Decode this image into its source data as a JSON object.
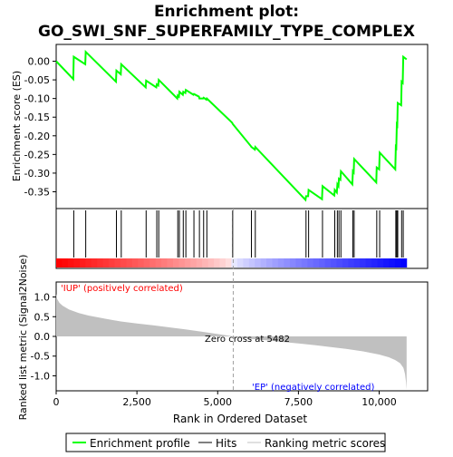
{
  "title_line1": "Enrichment plot:",
  "title_line2": "GO_SWI_SNF_SUPERFAMILY_TYPE_COMPLEX",
  "colors": {
    "es_line": "#00ff00",
    "hits": "#000000",
    "metric_fill": "#c0c0c0",
    "pos_label": "#ff0000",
    "neg_label": "#0000ff",
    "zero_line": "#a0a0a0"
  },
  "legend": {
    "es": "Enrichment profile",
    "hits": "Hits",
    "metric": "Ranking metric scores"
  },
  "chart_data": [
    {
      "type": "line",
      "name": "enrichment-profile",
      "ylabel": "Enrichment score (ES)",
      "xlim": [
        0,
        11500
      ],
      "ylim": [
        -0.395,
        0.045
      ],
      "yticks": [
        0.0,
        -0.05,
        -0.1,
        -0.15,
        -0.2,
        -0.25,
        -0.3,
        -0.35
      ],
      "ytick_labels": [
        "0.00",
        "-0.05",
        "-0.10",
        "-0.15",
        "-0.20",
        "-0.25",
        "-0.30",
        "-0.35"
      ],
      "grid": false,
      "points": [
        [
          0,
          0.0
        ],
        [
          530,
          -0.048
        ],
        [
          545,
          0.012
        ],
        [
          900,
          -0.008
        ],
        [
          915,
          0.025
        ],
        [
          1850,
          -0.055
        ],
        [
          1865,
          -0.025
        ],
        [
          2000,
          -0.035
        ],
        [
          2015,
          -0.008
        ],
        [
          2770,
          -0.07
        ],
        [
          2785,
          -0.052
        ],
        [
          3100,
          -0.07
        ],
        [
          3115,
          -0.062
        ],
        [
          3160,
          -0.065
        ],
        [
          3175,
          -0.05
        ],
        [
          3750,
          -0.1
        ],
        [
          3765,
          -0.092
        ],
        [
          3800,
          -0.095
        ],
        [
          3815,
          -0.082
        ],
        [
          3920,
          -0.09
        ],
        [
          3935,
          -0.082
        ],
        [
          4000,
          -0.085
        ],
        [
          4015,
          -0.077
        ],
        [
          4250,
          -0.09
        ],
        [
          4265,
          -0.088
        ],
        [
          4420,
          -0.095
        ],
        [
          4435,
          -0.1
        ],
        [
          4550,
          -0.1
        ],
        [
          4565,
          -0.098
        ],
        [
          4650,
          -0.103
        ],
        [
          4665,
          -0.1
        ],
        [
          5450,
          -0.165
        ],
        [
          5465,
          -0.168
        ],
        [
          6030,
          -0.228
        ],
        [
          6045,
          -0.23
        ],
        [
          6150,
          -0.237
        ],
        [
          6165,
          -0.23
        ],
        [
          7720,
          -0.372
        ],
        [
          7735,
          -0.362
        ],
        [
          7800,
          -0.362
        ],
        [
          7815,
          -0.345
        ],
        [
          8230,
          -0.37
        ],
        [
          8245,
          -0.335
        ],
        [
          8610,
          -0.36
        ],
        [
          8625,
          -0.345
        ],
        [
          8690,
          -0.352
        ],
        [
          8705,
          -0.33
        ],
        [
          8740,
          -0.335
        ],
        [
          8755,
          -0.315
        ],
        [
          8800,
          -0.318
        ],
        [
          8815,
          -0.295
        ],
        [
          9170,
          -0.33
        ],
        [
          9185,
          -0.295
        ],
        [
          9210,
          -0.298
        ],
        [
          9225,
          -0.262
        ],
        [
          9910,
          -0.325
        ],
        [
          9925,
          -0.285
        ],
        [
          10000,
          -0.29
        ],
        [
          10015,
          -0.245
        ],
        [
          10500,
          -0.29
        ],
        [
          10515,
          -0.23
        ],
        [
          10530,
          -0.232
        ],
        [
          10545,
          -0.17
        ],
        [
          10560,
          -0.172
        ],
        [
          10575,
          -0.112
        ],
        [
          10680,
          -0.118
        ],
        [
          10695,
          -0.055
        ],
        [
          10730,
          -0.058
        ],
        [
          10745,
          0.012
        ],
        [
          10850,
          0.005
        ]
      ]
    },
    {
      "type": "hits",
      "name": "hits",
      "x": [
        545,
        915,
        1865,
        2015,
        2785,
        3115,
        3175,
        3765,
        3815,
        3935,
        4015,
        4265,
        4435,
        4565,
        4665,
        5465,
        6045,
        6165,
        7735,
        7815,
        8245,
        8625,
        8705,
        8755,
        8815,
        9185,
        9225,
        9925,
        10015,
        10515,
        10545,
        10575,
        10695,
        10745
      ]
    },
    {
      "type": "area",
      "name": "ranking-metric",
      "xlabel": "Rank in Ordered Dataset",
      "ylabel": "Ranked list metric (Signal2Noise)",
      "xlim": [
        0,
        11500
      ],
      "ylim": [
        -1.38,
        1.38
      ],
      "xticks": [
        0,
        2500,
        5000,
        7500,
        10000
      ],
      "xtick_labels": [
        "0",
        "2,500",
        "5,000",
        "7,500",
        "10,000"
      ],
      "yticks": [
        1.0,
        0.5,
        0.0,
        -0.5,
        -1.0
      ],
      "ytick_labels": [
        "1.0",
        "0.5",
        "0.0",
        "-0.5",
        "-1.0"
      ],
      "x": [
        0,
        30,
        100,
        200,
        400,
        700,
        1000,
        1500,
        2000,
        2500,
        3000,
        3500,
        4000,
        4500,
        5000,
        5482,
        6000,
        6500,
        7000,
        7500,
        8000,
        8500,
        9000,
        9500,
        10000,
        10300,
        10500,
        10650,
        10750,
        10800,
        10830,
        10850
      ],
      "values": [
        1.08,
        0.95,
        0.85,
        0.78,
        0.68,
        0.59,
        0.53,
        0.45,
        0.38,
        0.33,
        0.28,
        0.23,
        0.18,
        0.12,
        0.06,
        0.0,
        -0.06,
        -0.1,
        -0.14,
        -0.18,
        -0.22,
        -0.27,
        -0.32,
        -0.38,
        -0.46,
        -0.53,
        -0.6,
        -0.68,
        -0.8,
        -0.95,
        -1.15,
        -1.35
      ],
      "zero_cross_label": "Zero cross at 5482",
      "zero_cross": 5482,
      "pos_label": "'IUP' (positively correlated)",
      "neg_label": "'EP' (negatively correlated)"
    }
  ]
}
